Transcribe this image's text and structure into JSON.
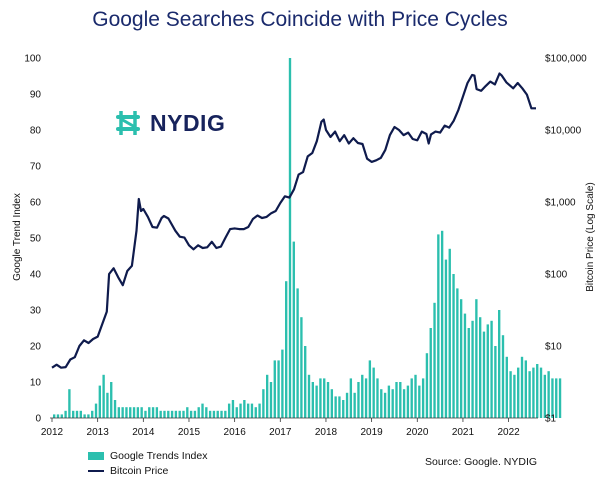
{
  "chart_data": {
    "type": "bar+line",
    "title": "Google Searches Coincide with Price Cycles",
    "ylabel_left": "Google Trend Index",
    "ylabel_right": "Bitcoin Price (Log Scale)",
    "ylim_left": [
      0,
      100
    ],
    "yticks_left": [
      "0",
      "10",
      "20",
      "30",
      "40",
      "50",
      "60",
      "70",
      "80",
      "90",
      "100"
    ],
    "ylim_right": [
      1,
      100000
    ],
    "right_scale": "log",
    "yticks_right": [
      "$1",
      "$10",
      "$100",
      "$1,000",
      "$10,000",
      "$100,000"
    ],
    "xlim": [
      2012.0,
      2022.6
    ],
    "xticks": [
      "2012",
      "2013",
      "2014",
      "2015",
      "2016",
      "2017",
      "2018",
      "2019",
      "2020",
      "2021",
      "2022"
    ],
    "grid": false,
    "legend_position": "bottom-left",
    "colors": {
      "bars": "#2bbfae",
      "line": "#0f1b4d"
    },
    "series": [
      {
        "name": "Google Trends Index",
        "type": "bar",
        "start": 2012.0,
        "step": 0.0833,
        "values": [
          1,
          1,
          1,
          2,
          8,
          2,
          2,
          2,
          1,
          1,
          2,
          4,
          9,
          12,
          7,
          10,
          5,
          3,
          3,
          3,
          3,
          3,
          3,
          3,
          2,
          3,
          3,
          3,
          2,
          2,
          2,
          2,
          2,
          2,
          2,
          3,
          2,
          2,
          3,
          4,
          3,
          2,
          2,
          2,
          2,
          2,
          4,
          5,
          3,
          4,
          5,
          4,
          4,
          3,
          4,
          8,
          12,
          10,
          16,
          16,
          19,
          38,
          100,
          49,
          36,
          28,
          20,
          12,
          10,
          9,
          11,
          11,
          10,
          8,
          6,
          6,
          5,
          7,
          11,
          7,
          10,
          12,
          11,
          16,
          14,
          11,
          8,
          7,
          9,
          8,
          10,
          10,
          8,
          9,
          11,
          12,
          9,
          11,
          18,
          25,
          32,
          51,
          52,
          44,
          47,
          40,
          36,
          33,
          29,
          25,
          27,
          33,
          28,
          24,
          26,
          27,
          20,
          30,
          23,
          17,
          13,
          12,
          14,
          17,
          16,
          13,
          14,
          15,
          14,
          12,
          13,
          11,
          11,
          11
        ],
        "labeled": false
      },
      {
        "name": "Bitcoin Price",
        "type": "line",
        "scale": "log",
        "points": [
          [
            2012.0,
            5
          ],
          [
            2012.1,
            5.5
          ],
          [
            2012.2,
            5
          ],
          [
            2012.3,
            5.1
          ],
          [
            2012.4,
            6.5
          ],
          [
            2012.5,
            7
          ],
          [
            2012.6,
            10
          ],
          [
            2012.7,
            12
          ],
          [
            2012.8,
            11
          ],
          [
            2012.9,
            12.5
          ],
          [
            2013.0,
            13.5
          ],
          [
            2013.1,
            20
          ],
          [
            2013.2,
            30
          ],
          [
            2013.25,
            100
          ],
          [
            2013.35,
            120
          ],
          [
            2013.45,
            90
          ],
          [
            2013.55,
            70
          ],
          [
            2013.65,
            110
          ],
          [
            2013.75,
            130
          ],
          [
            2013.85,
            400
          ],
          [
            2013.9,
            1100
          ],
          [
            2013.95,
            750
          ],
          [
            2014.0,
            800
          ],
          [
            2014.1,
            620
          ],
          [
            2014.2,
            450
          ],
          [
            2014.3,
            440
          ],
          [
            2014.4,
            600
          ],
          [
            2014.45,
            640
          ],
          [
            2014.55,
            590
          ],
          [
            2014.7,
            400
          ],
          [
            2014.8,
            330
          ],
          [
            2014.9,
            320
          ],
          [
            2015.0,
            250
          ],
          [
            2015.1,
            220
          ],
          [
            2015.2,
            250
          ],
          [
            2015.3,
            230
          ],
          [
            2015.4,
            235
          ],
          [
            2015.5,
            280
          ],
          [
            2015.6,
            230
          ],
          [
            2015.7,
            240
          ],
          [
            2015.8,
            320
          ],
          [
            2015.9,
            420
          ],
          [
            2016.0,
            430
          ],
          [
            2016.1,
            420
          ],
          [
            2016.2,
            420
          ],
          [
            2016.3,
            450
          ],
          [
            2016.4,
            580
          ],
          [
            2016.5,
            650
          ],
          [
            2016.6,
            600
          ],
          [
            2016.7,
            620
          ],
          [
            2016.8,
            700
          ],
          [
            2016.9,
            750
          ],
          [
            2017.0,
            970
          ],
          [
            2017.1,
            1200
          ],
          [
            2017.2,
            1150
          ],
          [
            2017.3,
            1500
          ],
          [
            2017.4,
            2400
          ],
          [
            2017.5,
            2600
          ],
          [
            2017.6,
            4300
          ],
          [
            2017.7,
            4800
          ],
          [
            2017.8,
            7000
          ],
          [
            2017.9,
            13000
          ],
          [
            2017.95,
            14000
          ],
          [
            2018.0,
            10000
          ],
          [
            2018.1,
            8000
          ],
          [
            2018.2,
            9500
          ],
          [
            2018.3,
            7000
          ],
          [
            2018.4,
            8500
          ],
          [
            2018.5,
            6500
          ],
          [
            2018.6,
            7700
          ],
          [
            2018.7,
            6600
          ],
          [
            2018.8,
            6400
          ],
          [
            2018.9,
            4000
          ],
          [
            2019.0,
            3600
          ],
          [
            2019.1,
            3800
          ],
          [
            2019.2,
            4100
          ],
          [
            2019.3,
            5300
          ],
          [
            2019.4,
            8500
          ],
          [
            2019.5,
            11000
          ],
          [
            2019.6,
            10000
          ],
          [
            2019.7,
            8500
          ],
          [
            2019.8,
            9200
          ],
          [
            2019.9,
            7500
          ],
          [
            2020.0,
            7200
          ],
          [
            2020.1,
            9500
          ],
          [
            2020.2,
            8800
          ],
          [
            2020.25,
            6500
          ],
          [
            2020.3,
            8700
          ],
          [
            2020.4,
            9500
          ],
          [
            2020.5,
            9200
          ],
          [
            2020.6,
            11500
          ],
          [
            2020.7,
            10800
          ],
          [
            2020.8,
            13500
          ],
          [
            2020.9,
            19000
          ],
          [
            2021.0,
            29000
          ],
          [
            2021.1,
            45000
          ],
          [
            2021.2,
            58000
          ],
          [
            2021.25,
            57000
          ],
          [
            2021.3,
            37000
          ],
          [
            2021.4,
            35000
          ],
          [
            2021.5,
            41000
          ],
          [
            2021.6,
            47000
          ],
          [
            2021.7,
            43000
          ],
          [
            2021.8,
            61000
          ],
          [
            2021.85,
            57000
          ],
          [
            2021.95,
            46000
          ],
          [
            2022.1,
            38000
          ],
          [
            2022.2,
            45000
          ],
          [
            2022.3,
            38000
          ],
          [
            2022.4,
            31000
          ],
          [
            2022.5,
            20000
          ],
          [
            2022.6,
            20000
          ]
        ]
      }
    ]
  },
  "logo": {
    "text": "NYDIG",
    "icon": "nydig-logo-icon"
  },
  "legend": {
    "bars": "Google Trends Index",
    "line": "Bitcoin Price"
  },
  "source": "Source: Google. NYDIG"
}
